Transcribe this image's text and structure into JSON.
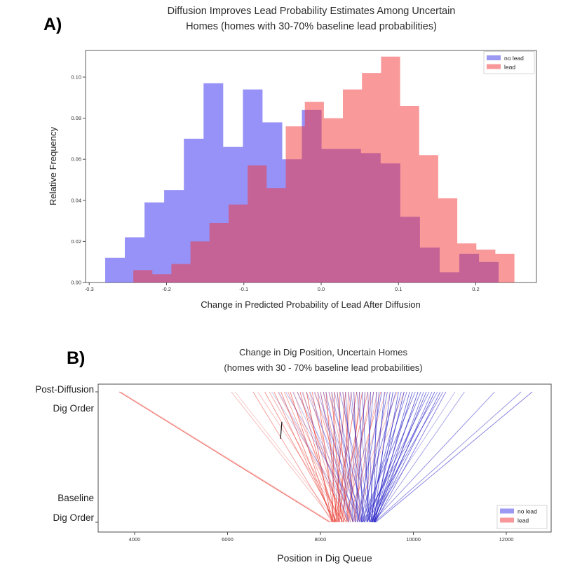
{
  "figure": {
    "background": "#ffffff"
  },
  "panel_a": {
    "label": "A)",
    "title_lines": [
      "Diffusion Improves Lead Probability Estimates Among Uncertain",
      "Homes (homes with 30-70% baseline lead probabilities)"
    ],
    "xlabel": "Change in Predicted Probability of Lead After Diffusion",
    "ylabel": "Relative Frequency",
    "legend": {
      "items": [
        {
          "label": "no lead",
          "swatch": "#9b99f1"
        },
        {
          "label": "lead",
          "swatch": "#f9989a"
        }
      ]
    }
  },
  "panel_b": {
    "label": "B)",
    "title_lines": [
      "Change in Dig Position, Uncertain Homes",
      "(homes with 30 - 70% baseline lead probabilities)"
    ],
    "xlabel": "Position in Dig Queue",
    "y_top_label_lines": [
      "Post-Diffusion",
      "Dig Order"
    ],
    "y_bottom_label_lines": [
      "Baseline",
      "Dig Order"
    ],
    "legend": {
      "items": [
        {
          "label": "no lead",
          "swatch": "#9b99f1"
        },
        {
          "label": "lead",
          "swatch": "#f9989a"
        }
      ]
    }
  },
  "chart_data": [
    {
      "type": "histogram",
      "title": "Diffusion Improves Lead Probability Estimates Among Uncertain Homes (homes with 30-70% baseline lead probabilities)",
      "xlabel": "Change in Predicted Probability of Lead After Diffusion",
      "ylabel": "Relative Frequency",
      "xlim": [
        -0.305,
        0.278
      ],
      "ylim": [
        0,
        0.113
      ],
      "xticks": [
        -0.3,
        -0.2,
        -0.1,
        0.0,
        0.1,
        0.2
      ],
      "yticks": [
        0.0,
        0.02,
        0.04,
        0.06,
        0.08,
        0.1
      ],
      "legend_position": "upper right",
      "grid": false,
      "series": [
        {
          "name": "no lead",
          "fill": "rgba(62,54,240,0.54)",
          "bin_start": -0.2794,
          "bin_width": 0.02545,
          "values": [
            0.012,
            0.022,
            0.039,
            0.045,
            0.07,
            0.097,
            0.066,
            0.094,
            0.078,
            0.06,
            0.084,
            0.065,
            0.065,
            0.063,
            0.058,
            0.032,
            0.017,
            0.005,
            0.014,
            0.01
          ]
        },
        {
          "name": "lead",
          "fill": "rgba(243,51,54,0.50)",
          "bin_start": -0.243,
          "bin_width": 0.02465,
          "values": [
            0.006,
            0.004,
            0.009,
            0.02,
            0.029,
            0.038,
            0.057,
            0.046,
            0.076,
            0.088,
            0.08,
            0.094,
            0.102,
            0.11,
            0.086,
            0.062,
            0.041,
            0.019,
            0.016,
            0.014
          ]
        }
      ]
    },
    {
      "type": "slope",
      "title": "Change in Dig Position, Uncertain Homes (homes with 30 - 70% baseline lead probabilities)",
      "xlabel": "Position in Dig Queue",
      "axis_top_label": "Post-Diffusion Dig Order",
      "axis_bottom_label": "Baseline Dig Order",
      "xlim": [
        3215,
        12970
      ],
      "xticks": [
        4000,
        6000,
        8000,
        10000,
        12000
      ],
      "legend_position": "lower right",
      "annotation_mark": {
        "x_from": 7170,
        "x_to": 7140,
        "frac_from": 0.23,
        "frac_to": 0.36,
        "color": "#111111"
      },
      "series": [
        {
          "name": "no lead",
          "stroke": "#2a23c8",
          "lines": [
            [
              12560,
              9190,
              0.6
            ],
            [
              12320,
              9160,
              0.5
            ],
            [
              11750,
              9120,
              0.55
            ],
            [
              11100,
              9150,
              0.45
            ],
            [
              10900,
              9050,
              0.35
            ],
            [
              10700,
              9180,
              0.6
            ],
            [
              10640,
              9000,
              0.55
            ],
            [
              10580,
              9150,
              0.65
            ],
            [
              10520,
              8900,
              0.5
            ],
            [
              10460,
              9100,
              0.7
            ],
            [
              10400,
              9170,
              0.6
            ],
            [
              10340,
              8950,
              0.55
            ],
            [
              10280,
              9120,
              0.7
            ],
            [
              10220,
              9180,
              0.6
            ],
            [
              10160,
              9000,
              0.65
            ],
            [
              10100,
              9150,
              0.75
            ],
            [
              10040,
              8880,
              0.6
            ],
            [
              9980,
              9100,
              0.7
            ],
            [
              9920,
              9160,
              0.65
            ],
            [
              9860,
              8950,
              0.6
            ],
            [
              9800,
              9120,
              0.75
            ],
            [
              9740,
              9000,
              0.65
            ],
            [
              9680,
              9170,
              0.7
            ],
            [
              9620,
              8850,
              0.6
            ],
            [
              9560,
              9080,
              0.7
            ],
            [
              9500,
              9150,
              0.65
            ],
            [
              9440,
              8920,
              0.6
            ],
            [
              9380,
              9100,
              0.7
            ],
            [
              9320,
              8800,
              0.6
            ],
            [
              9260,
              9050,
              0.65
            ],
            [
              9200,
              9150,
              0.6
            ],
            [
              9140,
              8880,
              0.55
            ],
            [
              9080,
              9000,
              0.6
            ],
            [
              9020,
              9120,
              0.55
            ],
            [
              8960,
              8750,
              0.5
            ],
            [
              8900,
              9050,
              0.6
            ],
            [
              8840,
              8900,
              0.55
            ],
            [
              8780,
              9100,
              0.5
            ],
            [
              8720,
              8800,
              0.55
            ],
            [
              8660,
              8950,
              0.5
            ],
            [
              8600,
              9080,
              0.45
            ],
            [
              8540,
              8700,
              0.5
            ],
            [
              8480,
              8900,
              0.45
            ],
            [
              8420,
              9050,
              0.5
            ],
            [
              8360,
              8750,
              0.45
            ],
            [
              8300,
              8950,
              0.4
            ],
            [
              8240,
              8850,
              0.45
            ],
            [
              8180,
              9000,
              0.4
            ],
            [
              8120,
              8700,
              0.45
            ],
            [
              8060,
              8900,
              0.4
            ],
            [
              8000,
              8600,
              0.35
            ],
            [
              7940,
              8850,
              0.4
            ],
            [
              7860,
              8950,
              0.35
            ],
            [
              7780,
              8700,
              0.4
            ],
            [
              7700,
              8900,
              0.35
            ],
            [
              7600,
              8600,
              0.3
            ],
            [
              7500,
              8850,
              0.35
            ],
            [
              7400,
              8750,
              0.3
            ],
            [
              7250,
              8900,
              0.35
            ],
            [
              7100,
              8650,
              0.3
            ],
            [
              6950,
              8800,
              0.25
            ]
          ]
        },
        {
          "name": "lead",
          "stroke": "#e8342b",
          "lines": [
            [
              3670,
              8200,
              0.8
            ],
            [
              3700,
              8235,
              0.3
            ],
            [
              6080,
              8300,
              0.35
            ],
            [
              6160,
              8360,
              0.28
            ],
            [
              6550,
              8250,
              0.5
            ],
            [
              6650,
              8500,
              0.35
            ],
            [
              6800,
              8350,
              0.55
            ],
            [
              6900,
              8480,
              0.4
            ],
            [
              7000,
              8300,
              0.55
            ],
            [
              7080,
              8600,
              0.35
            ],
            [
              7150,
              8280,
              0.6
            ],
            [
              7220,
              8420,
              0.45
            ],
            [
              7300,
              8550,
              0.5
            ],
            [
              7350,
              8250,
              0.65
            ],
            [
              7420,
              8380,
              0.4
            ],
            [
              7500,
              8700,
              0.5
            ],
            [
              7560,
              8320,
              0.6
            ],
            [
              7620,
              8460,
              0.45
            ],
            [
              7700,
              8250,
              0.7
            ],
            [
              7760,
              8580,
              0.4
            ],
            [
              7820,
              8400,
              0.55
            ],
            [
              7880,
              8700,
              0.45
            ],
            [
              7940,
              8300,
              0.6
            ],
            [
              8000,
              8500,
              0.5
            ],
            [
              8060,
              8650,
              0.45
            ],
            [
              8120,
              8350,
              0.65
            ],
            [
              8180,
              8800,
              0.4
            ],
            [
              8240,
              8450,
              0.6
            ],
            [
              8300,
              8260,
              0.7
            ],
            [
              8360,
              8600,
              0.5
            ],
            [
              8420,
              8380,
              0.65
            ],
            [
              8480,
              8750,
              0.45
            ],
            [
              8540,
              8300,
              0.7
            ],
            [
              8600,
              8500,
              0.55
            ],
            [
              8660,
              8400,
              0.6
            ],
            [
              8720,
              8850,
              0.4
            ],
            [
              8780,
              8320,
              0.65
            ],
            [
              8840,
              8600,
              0.5
            ],
            [
              8900,
              8450,
              0.6
            ],
            [
              8960,
              8750,
              0.45
            ],
            [
              9020,
              8350,
              0.55
            ],
            [
              9080,
              8550,
              0.5
            ],
            [
              9150,
              8400,
              0.45
            ],
            [
              9220,
              8700,
              0.4
            ],
            [
              9300,
              8500,
              0.5
            ],
            [
              9400,
              8600,
              0.35
            ],
            [
              9500,
              8800,
              0.3
            ],
            [
              9650,
              8550,
              0.35
            ],
            [
              9800,
              8700,
              0.3
            ]
          ]
        }
      ]
    }
  ]
}
